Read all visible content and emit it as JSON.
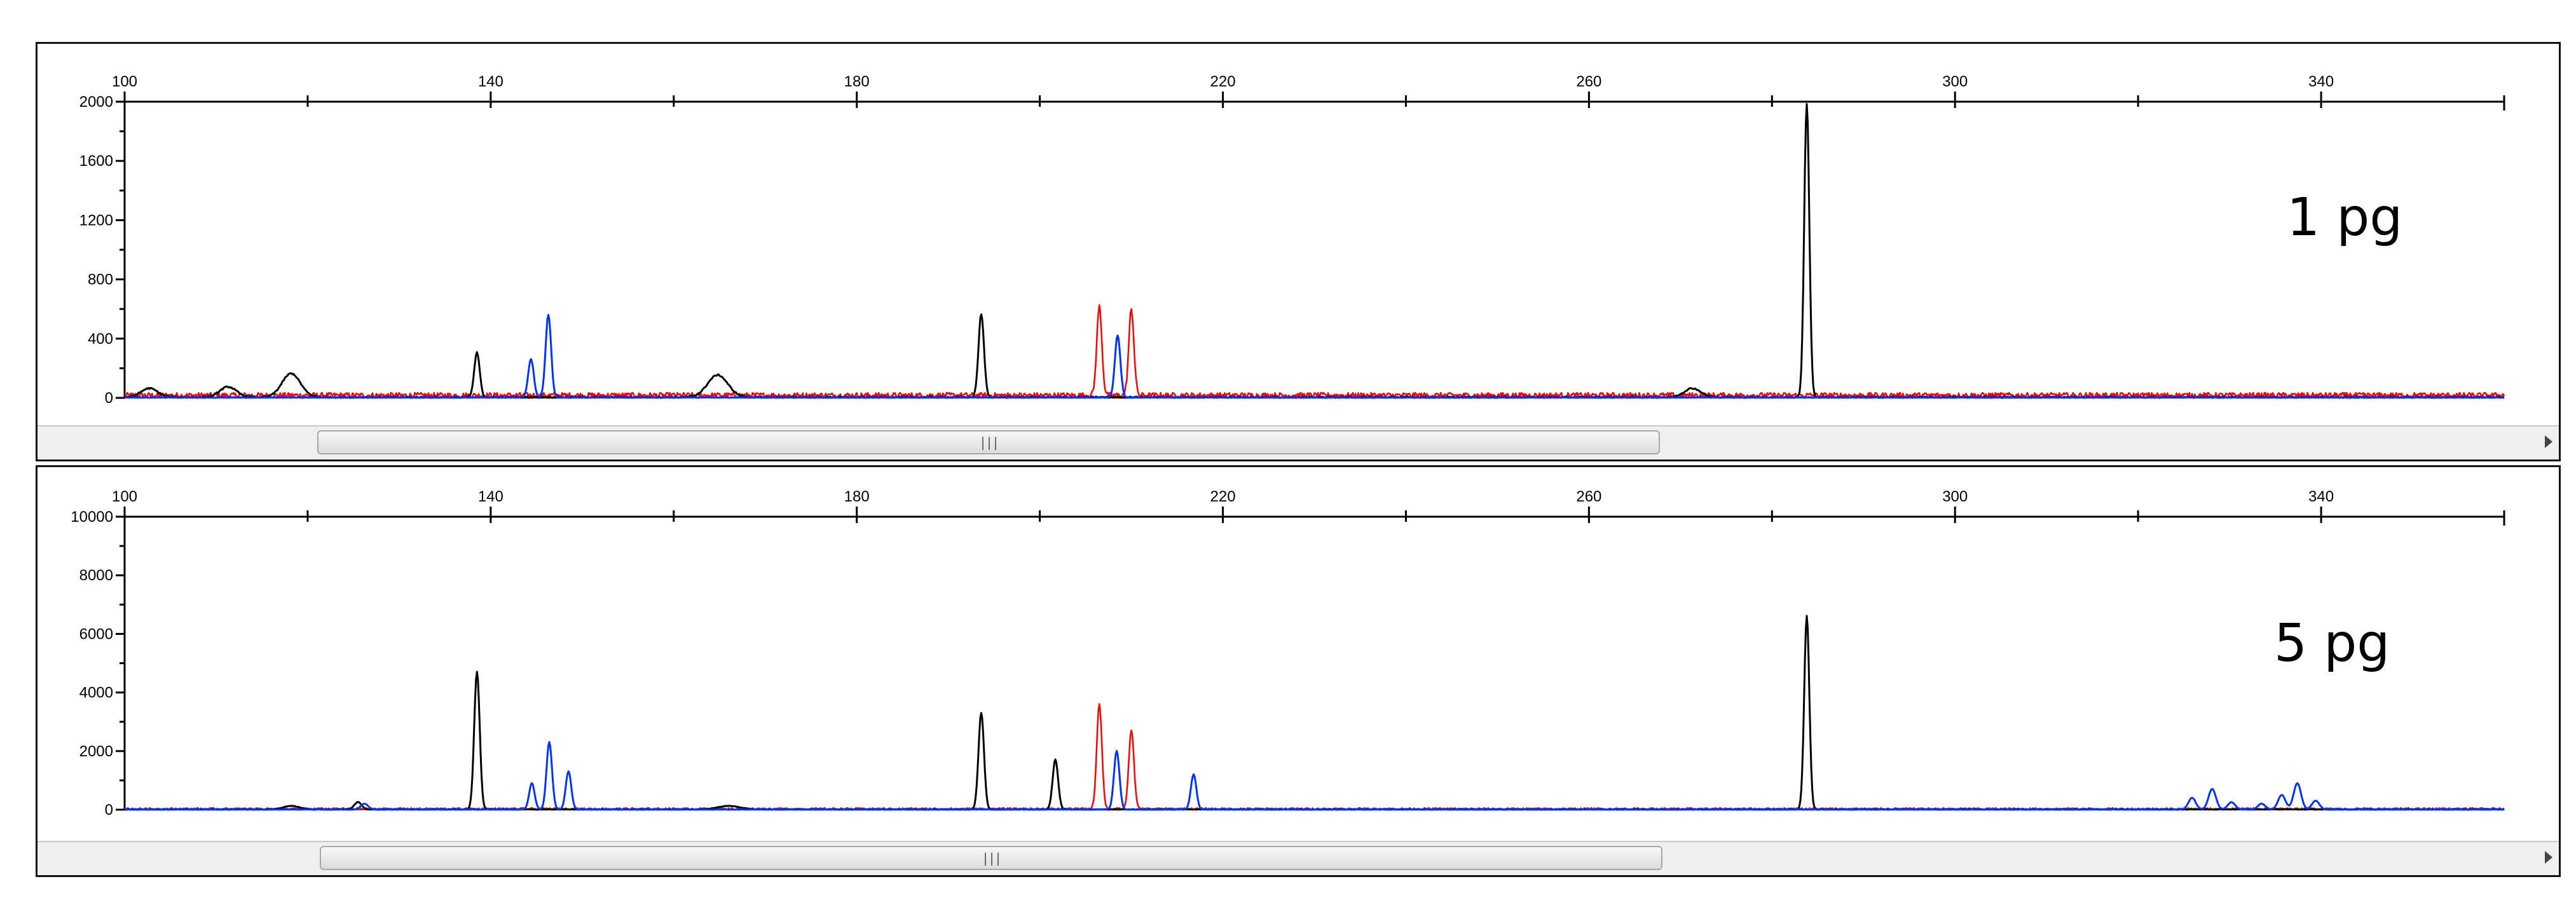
{
  "chart_data": [
    {
      "type": "line",
      "title": "",
      "annotation": "1 pg",
      "xlim": [
        100,
        360
      ],
      "ylim": [
        0,
        2000
      ],
      "x_ticks": [
        100,
        140,
        180,
        220,
        260,
        300,
        340
      ],
      "y_ticks": [
        0,
        400,
        800,
        1200,
        1600,
        2000
      ],
      "grid": false,
      "colors": {
        "black": "#000000",
        "blue": "#0033ff",
        "red": "#ff0000"
      },
      "noise": {
        "red": 35,
        "black": 15,
        "blue": 10
      },
      "series": [
        {
          "color": "black",
          "peaks": [
            {
              "x": 102.7,
              "y": 60,
              "w": 0.9
            },
            {
              "x": 111.3,
              "y": 70,
              "w": 0.9
            },
            {
              "x": 118.2,
              "y": 160,
              "w": 1.0
            },
            {
              "x": 138.5,
              "y": 300,
              "w": 0.3
            },
            {
              "x": 164.8,
              "y": 150,
              "w": 1.1
            },
            {
              "x": 193.6,
              "y": 560,
              "w": 0.3
            },
            {
              "x": 271.3,
              "y": 60,
              "w": 0.9
            },
            {
              "x": 283.8,
              "y": 1980,
              "w": 0.28
            }
          ]
        },
        {
          "color": "blue",
          "peaks": [
            {
              "x": 144.4,
              "y": 260,
              "w": 0.3
            },
            {
              "x": 146.3,
              "y": 560,
              "w": 0.3
            },
            {
              "x": 208.5,
              "y": 420,
              "w": 0.3
            }
          ]
        },
        {
          "color": "red",
          "peaks": [
            {
              "x": 206.5,
              "y": 600,
              "w": 0.28
            },
            {
              "x": 210.0,
              "y": 580,
              "w": 0.28
            }
          ]
        }
      ]
    },
    {
      "type": "line",
      "title": "",
      "annotation": "5 pg",
      "xlim": [
        100,
        360
      ],
      "ylim": [
        0,
        10000
      ],
      "x_ticks": [
        100,
        140,
        180,
        220,
        260,
        300,
        340
      ],
      "y_ticks": [
        0,
        2000,
        4000,
        6000,
        8000,
        10000
      ],
      "grid": false,
      "colors": {
        "black": "#000000",
        "blue": "#0033ff",
        "red": "#ff0000"
      },
      "noise": {
        "red": 60,
        "black": 30,
        "blue": 20
      },
      "series": [
        {
          "color": "black",
          "peaks": [
            {
              "x": 118.2,
              "y": 120,
              "w": 0.9
            },
            {
              "x": 125.5,
              "y": 250,
              "w": 0.4
            },
            {
              "x": 138.5,
              "y": 4700,
              "w": 0.3
            },
            {
              "x": 166.0,
              "y": 120,
              "w": 1.2
            },
            {
              "x": 193.6,
              "y": 3300,
              "w": 0.3
            },
            {
              "x": 201.7,
              "y": 1700,
              "w": 0.3
            },
            {
              "x": 283.8,
              "y": 6600,
              "w": 0.28
            }
          ]
        },
        {
          "color": "blue",
          "peaks": [
            {
              "x": 126.2,
              "y": 200,
              "w": 0.4
            },
            {
              "x": 144.5,
              "y": 900,
              "w": 0.3
            },
            {
              "x": 146.4,
              "y": 2300,
              "w": 0.3
            },
            {
              "x": 148.5,
              "y": 1300,
              "w": 0.3
            },
            {
              "x": 208.4,
              "y": 2000,
              "w": 0.3
            },
            {
              "x": 216.8,
              "y": 1200,
              "w": 0.3
            },
            {
              "x": 325.9,
              "y": 400,
              "w": 0.4
            },
            {
              "x": 328.1,
              "y": 700,
              "w": 0.4
            },
            {
              "x": 330.2,
              "y": 250,
              "w": 0.4
            },
            {
              "x": 333.5,
              "y": 200,
              "w": 0.4
            },
            {
              "x": 335.7,
              "y": 500,
              "w": 0.4
            },
            {
              "x": 337.4,
              "y": 900,
              "w": 0.4
            },
            {
              "x": 339.4,
              "y": 300,
              "w": 0.4
            }
          ]
        },
        {
          "color": "red",
          "peaks": [
            {
              "x": 206.5,
              "y": 3600,
              "w": 0.28
            },
            {
              "x": 210.0,
              "y": 2700,
              "w": 0.28
            }
          ]
        }
      ]
    }
  ]
}
